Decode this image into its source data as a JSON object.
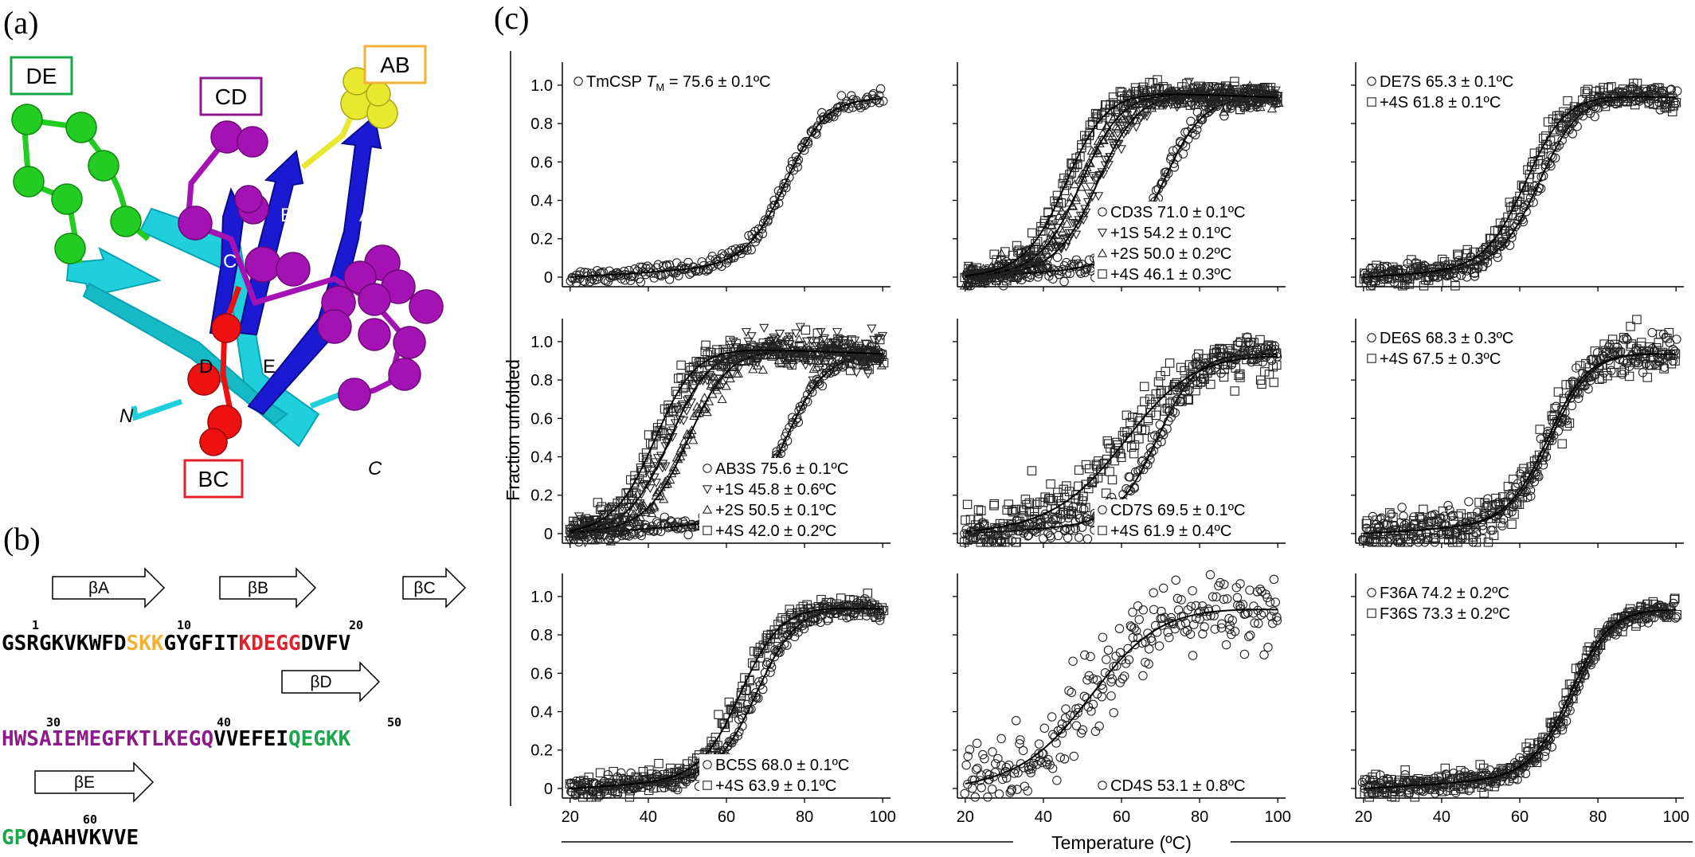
{
  "panels": {
    "a": {
      "label": "(a)"
    },
    "b": {
      "label": "(b)"
    },
    "c": {
      "label": "(c)"
    }
  },
  "structure": {
    "loop_labels": [
      {
        "text": "DE",
        "color": "#1aa64a"
      },
      {
        "text": "CD",
        "color": "#8b1a8b"
      },
      {
        "text": "AB",
        "color": "#f2b134"
      },
      {
        "text": "BC",
        "color": "#e0202a"
      }
    ],
    "strand_labels": [
      "A",
      "B",
      "C",
      "D",
      "E"
    ],
    "termini": [
      "N",
      "C"
    ],
    "colors": {
      "cyan": "#1fd0dc",
      "blue": "#1a1ad2",
      "green": "#22cc22",
      "magenta": "#a512b4",
      "yellow": "#e8e831",
      "red": "#ee1111"
    }
  },
  "sequence": {
    "strands": [
      "βA",
      "βB",
      "βC",
      "βD",
      "βE"
    ],
    "numbers": [
      "1",
      "10",
      "20",
      "30",
      "40",
      "50",
      "60"
    ],
    "lines": [
      [
        {
          "t": "GSRGKVKWFD",
          "c": "#000000"
        },
        {
          "t": "SKK",
          "c": "#f2b134"
        },
        {
          "t": "GYGFIT",
          "c": "#000000"
        },
        {
          "t": "KDEGG",
          "c": "#e0202a"
        },
        {
          "t": "DVFV",
          "c": "#000000"
        }
      ],
      [
        {
          "t": "HWSAIEMEGFKTLKEGQ",
          "c": "#8b1a8b"
        },
        {
          "t": "VVEFEI",
          "c": "#000000"
        },
        {
          "t": "QEGKK",
          "c": "#1aa64a"
        }
      ],
      [
        {
          "t": "GP",
          "c": "#1aa64a"
        },
        {
          "t": "QAAHVKVVE",
          "c": "#000000"
        }
      ]
    ]
  },
  "chart_data": {
    "type": "scatter",
    "xlabel": "Temperature (ºC)",
    "ylabel": "Fraction unfolded",
    "x_ticks": [
      20,
      40,
      60,
      80,
      100
    ],
    "y_ticks": [
      "0",
      "0.2",
      "0.4",
      "0.6",
      "0.8",
      "1.0"
    ],
    "xlim": [
      18,
      102
    ],
    "ylim": [
      -0.05,
      1.12
    ],
    "subplots": [
      {
        "legend_pos": "top-left",
        "series": [
          {
            "marker": "circle",
            "label": "TmCSP",
            "tm": 75.6,
            "noise": 0.02,
            "legend_text": "= 75.6 ± 0.1ºC",
            "tm_symbol": "T",
            "tm_sub": "M"
          }
        ]
      },
      {
        "legend_pos": "bottom-right",
        "series": [
          {
            "marker": "circle",
            "label": "CD3S 71.0 ± 0.1ºC",
            "tm": 71.0,
            "noise": 0.025
          },
          {
            "marker": "tri-down",
            "label": "+1S 54.2 ± 0.1ºC",
            "tm": 54.2,
            "noise": 0.03
          },
          {
            "marker": "tri-up",
            "label": "+2S 50.0 ± 0.2ºC",
            "tm": 50.0,
            "noise": 0.03
          },
          {
            "marker": "square",
            "label": "+4S 46.1 ± 0.3ºC",
            "tm": 46.1,
            "noise": 0.035
          }
        ]
      },
      {
        "legend_pos": "top-left",
        "series": [
          {
            "marker": "circle",
            "label": "DE7S 65.3 ± 0.1ºC",
            "tm": 65.3,
            "noise": 0.025
          },
          {
            "marker": "square",
            "label": "+4S 61.8 ± 0.1ºC",
            "tm": 61.8,
            "noise": 0.035
          }
        ]
      },
      {
        "legend_pos": "bottom-right",
        "series": [
          {
            "marker": "circle",
            "label": "AB3S 75.6 ± 0.1ºC",
            "tm": 75.6,
            "noise": 0.02
          },
          {
            "marker": "tri-down",
            "label": "+1S 45.8 ± 0.6ºC",
            "tm": 45.8,
            "noise": 0.05
          },
          {
            "marker": "tri-up",
            "label": "+2S 50.5 ± 0.1ºC",
            "tm": 50.5,
            "noise": 0.035
          },
          {
            "marker": "square",
            "label": "+4S 42.0 ± 0.2ºC",
            "tm": 42.0,
            "noise": 0.04
          }
        ]
      },
      {
        "legend_pos": "bottom-right",
        "series": [
          {
            "marker": "circle",
            "label": "CD7S 69.5 ± 0.1ºC",
            "tm": 69.5,
            "noise": 0.035
          },
          {
            "marker": "square",
            "label": "+4S 61.9 ± 0.4ºC",
            "tm": 61.9,
            "noise": 0.07
          }
        ]
      },
      {
        "legend_pos": "top-left",
        "series": [
          {
            "marker": "circle",
            "label": "DE6S 68.3 ± 0.3ºC",
            "tm": 68.3,
            "noise": 0.05
          },
          {
            "marker": "square",
            "label": "+4S 67.5 ± 0.3ºC",
            "tm": 67.5,
            "noise": 0.06
          }
        ]
      },
      {
        "legend_pos": "bottom-right",
        "series": [
          {
            "marker": "circle",
            "label": "BC5S 68.0 ± 0.1ºC",
            "tm": 68.0,
            "noise": 0.025
          },
          {
            "marker": "square",
            "label": "+4S 63.9 ± 0.1ºC",
            "tm": 63.9,
            "noise": 0.035
          }
        ]
      },
      {
        "legend_pos": "bottom-right",
        "series": [
          {
            "marker": "circle",
            "label": "CD4S 53.1 ± 0.8ºC",
            "tm": 53.1,
            "noise": 0.1
          }
        ]
      },
      {
        "legend_pos": "top-left",
        "series": [
          {
            "marker": "circle",
            "label": "F36A 74.2 ± 0.2ºC",
            "tm": 74.2,
            "noise": 0.025
          },
          {
            "marker": "square",
            "label": "F36S 73.3 ± 0.2ºC",
            "tm": 73.3,
            "noise": 0.03
          }
        ]
      }
    ]
  }
}
